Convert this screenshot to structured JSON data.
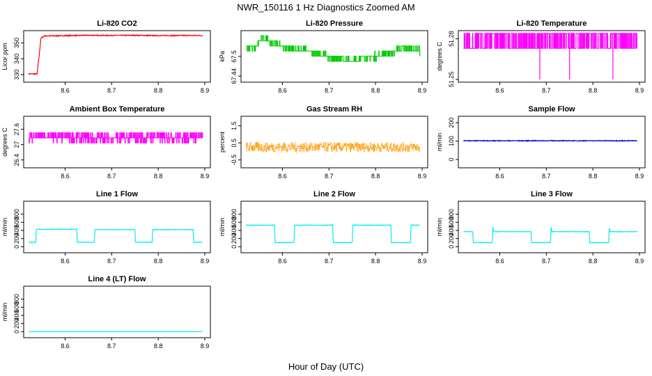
{
  "title": "NWR_150116  1 Hz Diagnostics Zoomed AM",
  "xlabel": "Hour of Day (UTC)",
  "chart_data": [
    {
      "id": "co2",
      "type": "line",
      "title": "Li-820 CO2",
      "ylabel": "Licor ppm",
      "xlim": [
        8.52,
        8.9
      ],
      "ylim": [
        327,
        356
      ],
      "yticks": [
        330,
        340,
        350
      ],
      "xticks": [
        8.6,
        8.7,
        8.8,
        8.9
      ],
      "color": "#ff0000",
      "series": {
        "x": [
          8.522,
          8.54,
          8.541,
          8.545,
          8.548,
          8.555,
          8.6,
          8.65,
          8.7,
          8.75,
          8.8,
          8.85,
          8.895
        ],
        "y": [
          330.5,
          330.4,
          334,
          344,
          353,
          354.4,
          354.6,
          354.8,
          354.7,
          354.8,
          354.6,
          354.7,
          354.7
        ]
      },
      "noise": 0.3
    },
    {
      "id": "pressure",
      "type": "line",
      "title": "Li-820 Pressure",
      "ylabel": "kPa",
      "xlim": [
        8.52,
        8.9
      ],
      "ylim": [
        67.43,
        67.57
      ],
      "yticks": [
        67.44,
        67.5
      ],
      "xticks": [
        8.6,
        8.7,
        8.8,
        8.9
      ],
      "color": "#00cc00",
      "step": true,
      "series": {
        "x": [
          8.522,
          8.54,
          8.555,
          8.575,
          8.6,
          8.625,
          8.65,
          8.675,
          8.7,
          8.725,
          8.75,
          8.775,
          8.8,
          8.825,
          8.85,
          8.875,
          8.895
        ],
        "y": [
          67.53,
          67.525,
          67.555,
          67.545,
          67.53,
          67.52,
          67.52,
          67.505,
          67.5,
          67.495,
          67.485,
          67.5,
          67.5,
          67.51,
          67.52,
          67.525,
          67.515
        ]
      },
      "noise": 0.009
    },
    {
      "id": "temp",
      "type": "line",
      "title": "Li-820 Temperature",
      "ylabel": "degrees C",
      "xlim": [
        8.52,
        8.9
      ],
      "ylim": [
        51.25,
        51.284
      ],
      "yticks": [
        51.25,
        51.28
      ],
      "xticks": [
        8.6,
        8.7,
        8.8,
        8.9
      ],
      "color": "#ff00ff",
      "spiky": true,
      "series": {
        "x": [
          8.522,
          8.895
        ],
        "y": [
          51.273,
          51.273
        ]
      },
      "high": 51.284,
      "dips": [
        [
          8.686,
          51.25
        ],
        [
          8.75,
          51.25
        ],
        [
          8.843,
          51.25
        ]
      ]
    },
    {
      "id": "ambient",
      "type": "line",
      "title": "Ambient Box Temperature",
      "ylabel": "degrees C",
      "xlim": [
        8.52,
        8.9
      ],
      "ylim": [
        26.2,
        28.0
      ],
      "yticks": [
        26.4,
        27.0,
        27.6
      ],
      "xticks": [
        8.6,
        8.7,
        8.8,
        8.9
      ],
      "color": "#ff00ff",
      "step": true,
      "series": {
        "x": [
          8.522,
          8.6,
          8.7,
          8.8,
          8.895
        ],
        "y": [
          27.3,
          27.3,
          27.25,
          27.3,
          27.3
        ]
      },
      "noise": 0.18
    },
    {
      "id": "rh",
      "type": "line",
      "title": "Gas Stream RH",
      "ylabel": "percent",
      "xlim": [
        8.52,
        8.9
      ],
      "ylim": [
        -0.8,
        1.9
      ],
      "yticks": [
        -0.5,
        0.5,
        1.5
      ],
      "xticks": [
        8.6,
        8.7,
        8.8,
        8.9
      ],
      "color": "#ff9900",
      "dashed": true,
      "series": {
        "x": [
          8.522,
          8.895
        ],
        "y": [
          0.25,
          0.25
        ]
      },
      "noise": 0.3
    },
    {
      "id": "sample",
      "type": "line",
      "title": "Sample Flow",
      "ylabel": "ml/min",
      "xlim": [
        8.52,
        8.9
      ],
      "ylim": [
        -30,
        220
      ],
      "yticks": [
        0,
        100,
        200
      ],
      "xticks": [
        8.6,
        8.7,
        8.8,
        8.9
      ],
      "color": "#0000cc",
      "series": {
        "x": [
          8.522,
          8.895
        ],
        "y": [
          102,
          102
        ]
      },
      "noise": 2
    },
    {
      "id": "line1",
      "type": "line",
      "title": "Line 1 Flow",
      "ylabel": "ml/min",
      "xlim": [
        8.52,
        8.9
      ],
      "ylim": [
        -80,
        1050
      ],
      "yticks": [
        0,
        200,
        400,
        600,
        800
      ],
      "xticks": [
        8.6,
        8.7,
        8.8,
        8.9
      ],
      "color": "#00eeee",
      "series": {
        "x": [
          8.522,
          8.537,
          8.538,
          8.625,
          8.626,
          8.663,
          8.664,
          8.75,
          8.751,
          8.787,
          8.788,
          8.875,
          8.876,
          8.895
        ],
        "y": [
          110,
          110,
          430,
          430,
          110,
          110,
          420,
          420,
          110,
          110,
          420,
          420,
          110,
          110
        ]
      },
      "noise": 6
    },
    {
      "id": "line2",
      "type": "line",
      "title": "Line 2 Flow",
      "ylabel": "ml/min",
      "xlim": [
        8.52,
        8.9
      ],
      "ylim": [
        -80,
        1050
      ],
      "yticks": [
        0,
        200,
        400,
        600,
        800
      ],
      "xticks": [
        8.6,
        8.7,
        8.8,
        8.9
      ],
      "color": "#00eeee",
      "series": {
        "x": [
          8.522,
          8.583,
          8.584,
          8.625,
          8.626,
          8.708,
          8.709,
          8.75,
          8.751,
          8.833,
          8.834,
          8.875,
          8.876,
          8.895
        ],
        "y": [
          530,
          530,
          100,
          100,
          530,
          530,
          100,
          100,
          530,
          530,
          100,
          100,
          530,
          530
        ]
      },
      "noise": 6
    },
    {
      "id": "line3",
      "type": "line",
      "title": "Line 3 Flow",
      "ylabel": "ml/min",
      "xlim": [
        8.52,
        8.9
      ],
      "ylim": [
        -80,
        1050
      ],
      "yticks": [
        0,
        200,
        400,
        600,
        800
      ],
      "xticks": [
        8.6,
        8.7,
        8.8,
        8.9
      ],
      "color": "#00eeee",
      "series": {
        "x": [
          8.522,
          8.542,
          8.543,
          8.584,
          8.585,
          8.586,
          8.587,
          8.667,
          8.668,
          8.709,
          8.71,
          8.711,
          8.712,
          8.792,
          8.793,
          8.834,
          8.835,
          8.836,
          8.837,
          8.895
        ],
        "y": [
          370,
          370,
          100,
          100,
          500,
          420,
          370,
          370,
          100,
          100,
          500,
          420,
          370,
          370,
          100,
          100,
          480,
          420,
          370,
          370
        ]
      },
      "noise": 6
    },
    {
      "id": "line4",
      "type": "line",
      "title": "Line 4 (LT) Flow",
      "ylabel": "ml/min",
      "xlim": [
        8.52,
        8.9
      ],
      "ylim": [
        -80,
        1050
      ],
      "yticks": [
        0,
        200,
        400,
        600,
        800
      ],
      "xticks": [
        8.6,
        8.7,
        8.8,
        8.9
      ],
      "color": "#00eeee",
      "series": {
        "x": [
          8.522,
          8.895
        ],
        "y": [
          0,
          0
        ]
      },
      "noise": 1
    }
  ]
}
